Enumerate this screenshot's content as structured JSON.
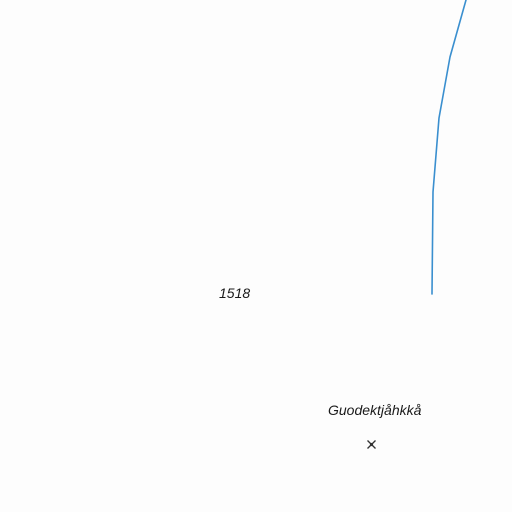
{
  "map": {
    "elevation_label": "1518",
    "place_name": "Guodektjåhkkå",
    "summit_marker_icon": "summit-cross-icon",
    "stream_color": "#3a8fcf",
    "label_color": "#1a1a1a",
    "background_color": "#fdfdfd"
  }
}
